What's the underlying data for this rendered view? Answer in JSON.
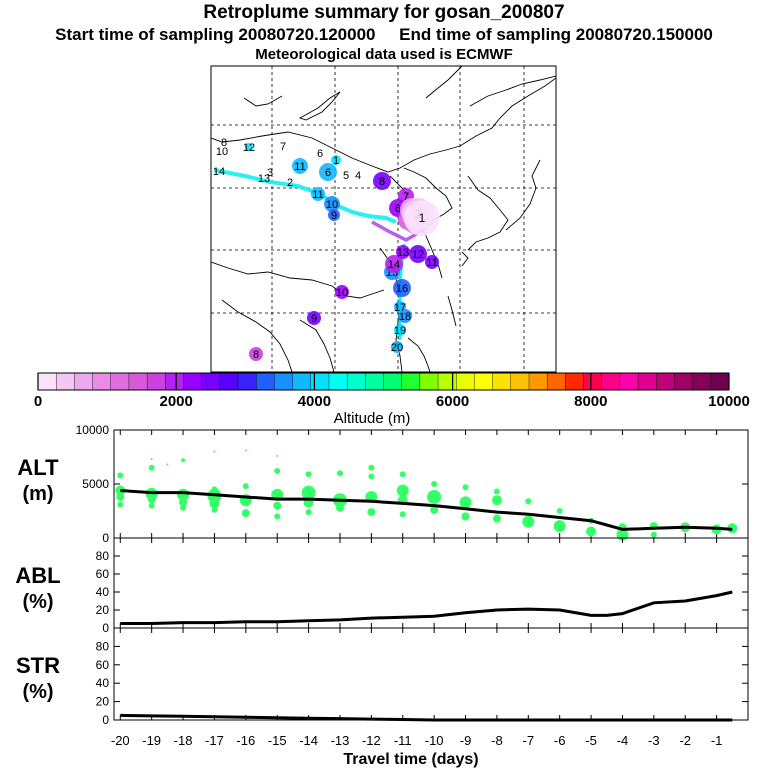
{
  "header": {
    "title": "Retroplume summary for gosan_200807",
    "start_label": "Start time of sampling",
    "start_value": "20080720.120000",
    "end_label": "End time of sampling",
    "end_value": "20080720.150000",
    "met_label": "Meteorological data used is ECMWF"
  },
  "colorbar": {
    "title": "Altitude (m)",
    "tick_labels": [
      "0",
      "2000",
      "4000",
      "6000",
      "8000",
      "10000"
    ],
    "range": [
      0,
      10000
    ],
    "colors": [
      "#fbe2fb",
      "#f4c6f4",
      "#eea8ee",
      "#e98be9",
      "#e06ee0",
      "#d85ad8",
      "#cc40e0",
      "#b521f0",
      "#9a00ff",
      "#7700ff",
      "#5a00ff",
      "#3a22ff",
      "#2060ff",
      "#1890ff",
      "#10b8ff",
      "#00e0ff",
      "#00fff0",
      "#00ffcc",
      "#00ffa0",
      "#00ff70",
      "#20ff30",
      "#80ff00",
      "#b8ff00",
      "#e8ff00",
      "#ffff00",
      "#ffe000",
      "#ffc000",
      "#ff9900",
      "#ff6600",
      "#ff2800",
      "#ff0050",
      "#ff0088",
      "#ff00aa",
      "#e00090",
      "#c0007a",
      "#a00066",
      "#860058",
      "#700050"
    ]
  },
  "map_markers": {
    "labels": [
      "8",
      "10",
      "12",
      "7",
      "6",
      "11",
      "1",
      "6",
      "5",
      "4",
      "13",
      "3",
      "2",
      "11",
      "10",
      "9",
      "8",
      "7",
      "6",
      "5",
      "4",
      "3",
      "2",
      "1",
      "14",
      "20",
      "19",
      "18",
      "17",
      "16",
      "15",
      "14",
      "13",
      "12",
      "11",
      "10",
      "9",
      "8"
    ],
    "colors": [
      "#80ff00",
      "#80ff00",
      "#00e0ff",
      "#80ff00",
      "#00e0ff",
      "#10b8ff",
      "#00e0ff",
      "#10b8ff",
      "#00e0ff",
      "#00e0ff",
      "#00e0ff",
      "#00ffcc",
      "#00e0ff",
      "#10b8ff",
      "#1890ff",
      "#2060ff",
      "#7700ff",
      "#b521f0",
      "#9a00ff",
      "#d85ad8",
      "#e06ee0",
      "#eea8ee",
      "#f4c6f4",
      "#fbe2fb",
      "#e06ee0",
      "#10b8ff",
      "#00e0ff",
      "#1890ff",
      "#10b8ff",
      "#2060ff",
      "#1890ff",
      "#b521f0",
      "#9a00ff",
      "#7700ff",
      "#7700ff",
      "#9a00ff",
      "#7700ff",
      "#cc40e0"
    ]
  },
  "chart_data": [
    {
      "type": "scatter",
      "name": "ALT",
      "ylabel": "ALT",
      "yunit": "(m)",
      "ylim": [
        0,
        10000
      ],
      "yticks": [
        "0",
        "5000",
        "10000"
      ],
      "ytick_values": [
        0,
        5000,
        10000
      ],
      "xlim": [
        -20.2,
        0
      ],
      "mean_line": {
        "x": [
          -20,
          -19,
          -18,
          -17,
          -16,
          -15,
          -14,
          -13,
          -12,
          -11,
          -10,
          -9,
          -8,
          -7,
          -6,
          -5,
          -4.5,
          -4,
          -3,
          -2,
          -1,
          -0.5
        ],
        "y": [
          4400,
          4200,
          4200,
          4000,
          3800,
          3600,
          3600,
          3500,
          3400,
          3200,
          3000,
          2700,
          2400,
          2200,
          1900,
          1600,
          1200,
          800,
          900,
          1000,
          900,
          800
        ]
      },
      "points": {
        "x": [
          -20,
          -20,
          -20,
          -20,
          -19,
          -19,
          -19,
          -19,
          -18,
          -18,
          -18,
          -18,
          -17,
          -17,
          -17,
          -17,
          -16,
          -16,
          -16,
          -15,
          -15,
          -15,
          -15,
          -14,
          -14,
          -14,
          -14,
          -13,
          -13,
          -13,
          -12,
          -12,
          -12,
          -12,
          -11,
          -11,
          -11,
          -11,
          -10,
          -10,
          -10,
          -9,
          -9,
          -9,
          -8,
          -8,
          -8,
          -7,
          -7,
          -6,
          -6,
          -5,
          -5,
          -4,
          -4,
          -3,
          -3,
          -2,
          -1,
          -0.5,
          -19,
          -18.5,
          -17,
          -16,
          -15
        ],
        "y": [
          5800,
          4400,
          3800,
          3100,
          6500,
          4100,
          3600,
          3000,
          7200,
          4000,
          3300,
          2800,
          4500,
          3900,
          3200,
          2600,
          4800,
          3500,
          2300,
          6200,
          4000,
          3000,
          2000,
          5900,
          4200,
          3300,
          2400,
          6000,
          3500,
          2800,
          6500,
          5700,
          3800,
          2400,
          5900,
          4400,
          3500,
          2200,
          5000,
          3800,
          2600,
          4700,
          3300,
          2000,
          4300,
          3500,
          1800,
          3400,
          1500,
          2500,
          1100,
          1600,
          600,
          1000,
          300,
          1100,
          300,
          1000,
          800,
          900,
          7300,
          6800,
          8000,
          8100,
          7600
        ],
        "size": [
          3,
          5,
          4,
          3,
          3,
          6,
          4,
          3,
          2,
          6,
          4,
          3,
          3,
          7,
          5,
          3,
          3,
          6,
          4,
          3,
          6,
          4,
          3,
          3,
          7,
          5,
          3,
          3,
          7,
          4,
          3,
          3,
          6,
          4,
          3,
          6,
          5,
          3,
          3,
          7,
          4,
          3,
          6,
          4,
          3,
          5,
          4,
          3,
          6,
          3,
          6,
          3,
          5,
          4,
          6,
          4,
          3,
          5,
          5,
          5,
          1,
          1,
          1,
          1,
          1
        ],
        "color": "#33ff66"
      }
    },
    {
      "type": "line",
      "name": "ABL",
      "ylabel": "ABL",
      "yunit": "(%)",
      "ylim": [
        0,
        100
      ],
      "yticks": [
        "0",
        "20",
        "40",
        "60",
        "80"
      ],
      "ytick_values": [
        0,
        20,
        40,
        60,
        80
      ],
      "xlim": [
        -20.2,
        0
      ],
      "x": [
        -20,
        -19,
        -18,
        -17,
        -16,
        -15,
        -14,
        -13,
        -12,
        -11,
        -10,
        -9,
        -8,
        -7,
        -6,
        -5,
        -4.5,
        -4,
        -3,
        -2,
        -1,
        -0.5
      ],
      "y": [
        5,
        5,
        6,
        6,
        7,
        7,
        8,
        9,
        11,
        12,
        13,
        17,
        20,
        21,
        20,
        14,
        14,
        16,
        28,
        30,
        36,
        40
      ]
    },
    {
      "type": "line",
      "name": "STR",
      "ylabel": "STR",
      "yunit": "(%)",
      "ylim": [
        0,
        100
      ],
      "yticks": [
        "0",
        "20",
        "40",
        "60",
        "80"
      ],
      "ytick_values": [
        0,
        20,
        40,
        60,
        80
      ],
      "xlim": [
        -20.2,
        0
      ],
      "x": [
        -20,
        -19,
        -18,
        -17,
        -16,
        -15,
        -14,
        -13,
        -12,
        -11,
        -10,
        -9,
        -8,
        -7,
        -6,
        -5,
        -4,
        -3,
        -2,
        -1,
        -0.5
      ],
      "y": [
        5,
        4.5,
        4,
        3.5,
        3,
        2.5,
        2,
        1.5,
        1,
        0.5,
        0,
        0,
        0,
        0,
        0,
        0,
        0,
        0,
        0,
        0,
        0
      ],
      "xlabel": "Travel time (days)",
      "xticks": [
        "-20",
        "-19",
        "-18",
        "-17",
        "-16",
        "-15",
        "-14",
        "-13",
        "-12",
        "-11",
        "-10",
        "-9",
        "-8",
        "-7",
        "-6",
        "-5",
        "-4",
        "-3",
        "-2",
        "-1"
      ],
      "xtick_values": [
        -20,
        -19,
        -18,
        -17,
        -16,
        -15,
        -14,
        -13,
        -12,
        -11,
        -10,
        -9,
        -8,
        -7,
        -6,
        -5,
        -4,
        -3,
        -2,
        -1
      ]
    }
  ]
}
